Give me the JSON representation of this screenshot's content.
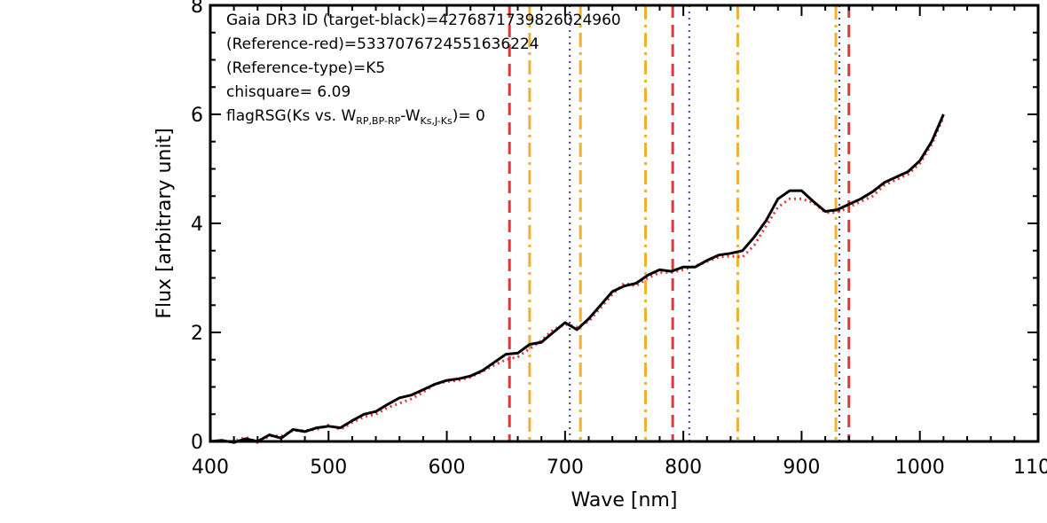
{
  "chart_data": {
    "type": "line",
    "title": "",
    "xlabel": "Wave [nm]",
    "ylabel": "Flux [arbitrary unit]",
    "xlim": [
      400,
      1100
    ],
    "ylim": [
      0,
      8
    ],
    "xticks": [
      400,
      500,
      600,
      700,
      800,
      900,
      1000,
      1100
    ],
    "xtick_labels": [
      "400",
      "500",
      "600",
      "700",
      "800",
      "900",
      "1000",
      "1100"
    ],
    "yticks": [
      0,
      2,
      4,
      6,
      8
    ],
    "ytick_labels": [
      "0",
      "2",
      "4",
      "6",
      "8"
    ],
    "grid": false,
    "annotations": [
      "Gaia DR3 ID (target-black)=4276871739826024960",
      "(Reference-red)=5337076724551636224",
      "(Reference-type)=K5",
      "chisquare= 6.09"
    ],
    "flag_annotation": {
      "prefix": "flagRSG(Ks vs. W",
      "sub1": "RP,BP-RP",
      "mid": "-W",
      "sub2": "Ks,J-Ks",
      "suffix": ")= 0"
    },
    "series": [
      {
        "color": "#000000",
        "style": "solid",
        "x": [
          400,
          410,
          420,
          430,
          440,
          450,
          460,
          470,
          480,
          490,
          500,
          510,
          520,
          530,
          540,
          550,
          560,
          570,
          580,
          590,
          600,
          610,
          620,
          630,
          640,
          650,
          660,
          670,
          680,
          690,
          700,
          710,
          720,
          730,
          740,
          750,
          760,
          770,
          780,
          790,
          800,
          810,
          820,
          830,
          840,
          850,
          860,
          870,
          880,
          890,
          900,
          910,
          920,
          930,
          940,
          950,
          960,
          970,
          980,
          990,
          1000,
          1010,
          1020
        ],
        "y": [
          0.0,
          0.02,
          -0.02,
          0.05,
          0.0,
          0.12,
          0.06,
          0.22,
          0.18,
          0.25,
          0.28,
          0.25,
          0.38,
          0.5,
          0.55,
          0.68,
          0.8,
          0.85,
          0.95,
          1.05,
          1.12,
          1.15,
          1.2,
          1.3,
          1.45,
          1.6,
          1.62,
          1.78,
          1.82,
          2.0,
          2.18,
          2.05,
          2.25,
          2.5,
          2.75,
          2.85,
          2.9,
          3.05,
          3.15,
          3.12,
          3.2,
          3.2,
          3.32,
          3.42,
          3.45,
          3.5,
          3.75,
          4.05,
          4.45,
          4.6,
          4.6,
          4.4,
          4.22,
          4.25,
          4.35,
          4.45,
          4.58,
          4.75,
          4.85,
          4.95,
          5.15,
          5.5,
          6.0
        ]
      },
      {
        "color": "#e0383a",
        "style": "dotted",
        "x": [
          400,
          410,
          420,
          430,
          440,
          450,
          460,
          470,
          480,
          490,
          500,
          510,
          520,
          530,
          540,
          550,
          560,
          570,
          580,
          590,
          600,
          610,
          620,
          630,
          640,
          650,
          660,
          670,
          680,
          690,
          700,
          710,
          720,
          730,
          740,
          750,
          760,
          770,
          780,
          790,
          800,
          810,
          820,
          830,
          840,
          850,
          860,
          870,
          880,
          890,
          900,
          910,
          920,
          930,
          940,
          950,
          960,
          970,
          980,
          990,
          1000,
          1010,
          1020
        ],
        "y": [
          0.02,
          0.0,
          0.0,
          0.08,
          -0.02,
          0.1,
          0.1,
          0.2,
          0.2,
          0.22,
          0.3,
          0.22,
          0.35,
          0.45,
          0.5,
          0.62,
          0.7,
          0.78,
          0.9,
          1.05,
          1.1,
          1.12,
          1.18,
          1.28,
          1.4,
          1.5,
          1.55,
          1.7,
          1.85,
          2.05,
          2.15,
          2.1,
          2.2,
          2.45,
          2.7,
          2.9,
          2.85,
          3.0,
          3.1,
          3.1,
          3.15,
          3.22,
          3.3,
          3.38,
          3.4,
          3.38,
          3.6,
          3.95,
          4.3,
          4.45,
          4.45,
          4.38,
          4.2,
          4.2,
          4.3,
          4.4,
          4.5,
          4.7,
          4.8,
          4.9,
          5.1,
          5.45,
          5.95
        ]
      }
    ],
    "vlines": [
      {
        "x": 653,
        "color": "#e0383a",
        "style": "dashed"
      },
      {
        "x": 670,
        "color": "#f0b030",
        "style": "dashdot"
      },
      {
        "x": 704,
        "color": "#3a3aa0",
        "style": "dotted"
      },
      {
        "x": 713,
        "color": "#f0b030",
        "style": "dashdot"
      },
      {
        "x": 768,
        "color": "#f0b030",
        "style": "dashdot"
      },
      {
        "x": 791,
        "color": "#e0383a",
        "style": "dashed"
      },
      {
        "x": 805,
        "color": "#3a3aa0",
        "style": "dotted"
      },
      {
        "x": 846,
        "color": "#f0b030",
        "style": "dashdot"
      },
      {
        "x": 929,
        "color": "#f0b030",
        "style": "dashdot"
      },
      {
        "x": 932,
        "color": "#3a3aa0",
        "style": "dotted"
      },
      {
        "x": 940,
        "color": "#e0383a",
        "style": "dashed"
      }
    ]
  }
}
